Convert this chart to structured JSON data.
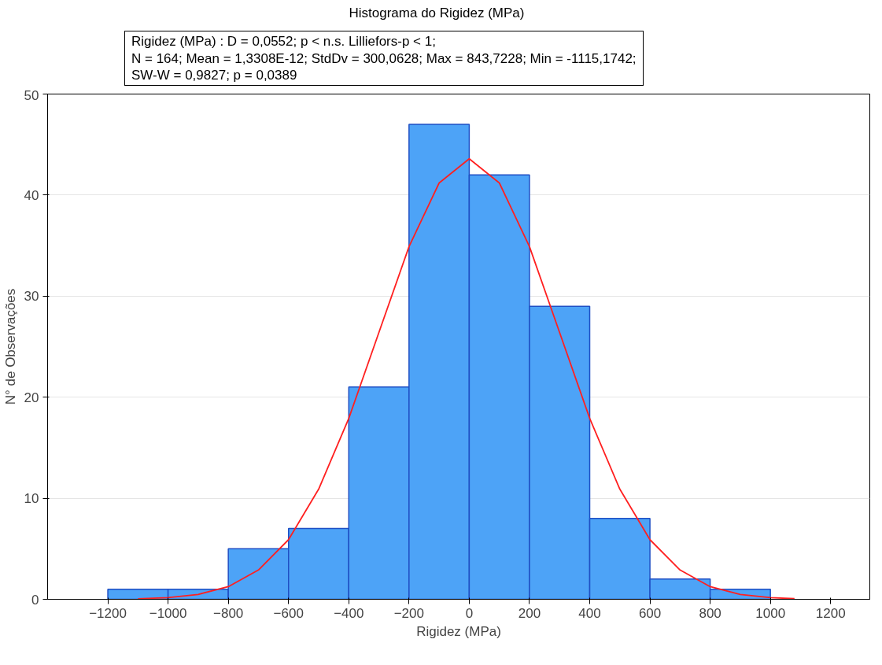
{
  "chart_data": {
    "type": "histogram",
    "title": "Histograma do Rigidez (MPa)",
    "annotations": [
      "Rigidez (MPa) :   D = 0,0552; p < n.s. Lilliefors-p < 1;",
      "N = 164; Mean = 1,3308E-12; StdDv = 300,0628; Max = 843,7228; Min = -1115,1742;",
      "SW-W = 0,9827; p = 0,0389"
    ],
    "xlabel": "Rigidez (MPa)",
    "ylabel": "N° de Observações",
    "bins": [
      -1200,
      -1000,
      -800,
      -600,
      -400,
      -200,
      0,
      200,
      400,
      600,
      800,
      1000,
      1200
    ],
    "values": [
      1,
      1,
      5,
      7,
      21,
      47,
      42,
      29,
      8,
      2,
      1,
      0
    ],
    "color": "#4da3f7",
    "series": [
      {
        "type": "line",
        "color": "#ff2020",
        "x": [
          -1100,
          -1000,
          -900,
          -800,
          -700,
          -600,
          -500,
          -400,
          -300,
          -200,
          -100,
          0,
          100,
          200,
          300,
          400,
          500,
          600,
          700,
          800,
          900,
          1000,
          1080
        ],
        "values": [
          0.05,
          0.17,
          0.48,
          1.25,
          2.9,
          5.9,
          10.9,
          17.9,
          26.4,
          34.9,
          41.2,
          43.6,
          41.2,
          34.9,
          26.4,
          17.9,
          10.9,
          5.9,
          2.9,
          1.25,
          0.48,
          0.17,
          0.06
        ]
      }
    ],
    "xlim": [
      -1400,
      1330
    ],
    "xticks": [
      -1200,
      -1000,
      -800,
      -600,
      -400,
      -200,
      0,
      200,
      400,
      600,
      800,
      1000,
      1200
    ],
    "ylim": [
      0,
      50
    ],
    "yticks": [
      0,
      10,
      20,
      30,
      40,
      50
    ],
    "grid": "y"
  }
}
